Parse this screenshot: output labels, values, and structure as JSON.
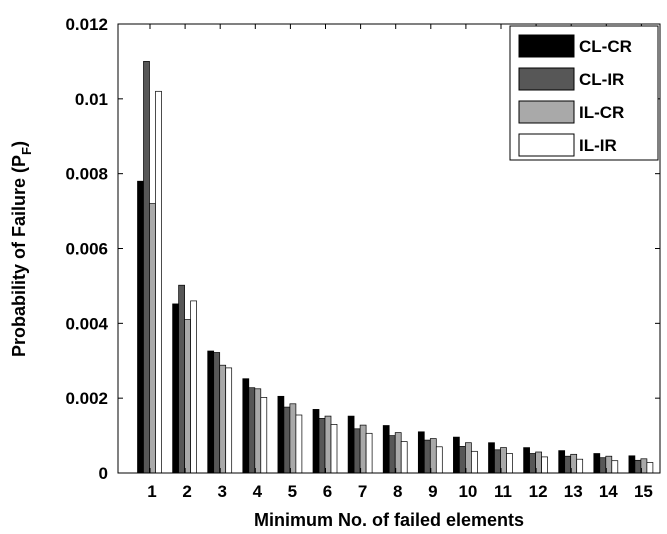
{
  "chart_data": {
    "type": "bar",
    "title": "",
    "xlabel": "Minimum No. of failed elements",
    "ylabel": "Probability of Failure (P",
    "ylabel_subscript": "F",
    "ylabel_close": ")",
    "ylim": [
      0,
      0.012
    ],
    "yticks": [
      "0",
      "0.002",
      "0.004",
      "0.006",
      "0.008",
      "0.01",
      "0.012"
    ],
    "ytick_values": [
      0,
      0.002,
      0.004,
      0.006,
      0.008,
      0.01,
      0.012
    ],
    "categories": [
      "1",
      "2",
      "3",
      "4",
      "5",
      "6",
      "7",
      "8",
      "9",
      "10",
      "11",
      "12",
      "13",
      "14",
      "15"
    ],
    "legend_position": "top-right",
    "grid": false,
    "series": [
      {
        "name": "CL-CR",
        "color": "#000000",
        "values": [
          0.0078,
          0.00452,
          0.00326,
          0.00252,
          0.00205,
          0.0017,
          0.00152,
          0.00127,
          0.0011,
          0.00096,
          0.00081,
          0.00068,
          0.0006,
          0.00052,
          0.00046
        ]
      },
      {
        "name": "CL-IR",
        "color": "#575757",
        "values": [
          0.011,
          0.00502,
          0.00322,
          0.00228,
          0.00176,
          0.00146,
          0.00118,
          0.001,
          0.00088,
          0.00071,
          0.00062,
          0.00052,
          0.00045,
          0.00041,
          0.00034
        ]
      },
      {
        "name": "IL-CR",
        "color": "#a9a9a9",
        "values": [
          0.0072,
          0.0041,
          0.00288,
          0.00225,
          0.00185,
          0.00152,
          0.00128,
          0.00108,
          0.00092,
          0.00081,
          0.00068,
          0.00056,
          0.0005,
          0.00045,
          0.00038
        ]
      },
      {
        "name": "IL-IR",
        "color": "#ffffff",
        "values": [
          0.0102,
          0.0046,
          0.00281,
          0.00202,
          0.00155,
          0.0013,
          0.00106,
          0.00084,
          0.0007,
          0.00058,
          0.00052,
          0.00043,
          0.00037,
          0.00033,
          0.00028
        ]
      }
    ]
  }
}
